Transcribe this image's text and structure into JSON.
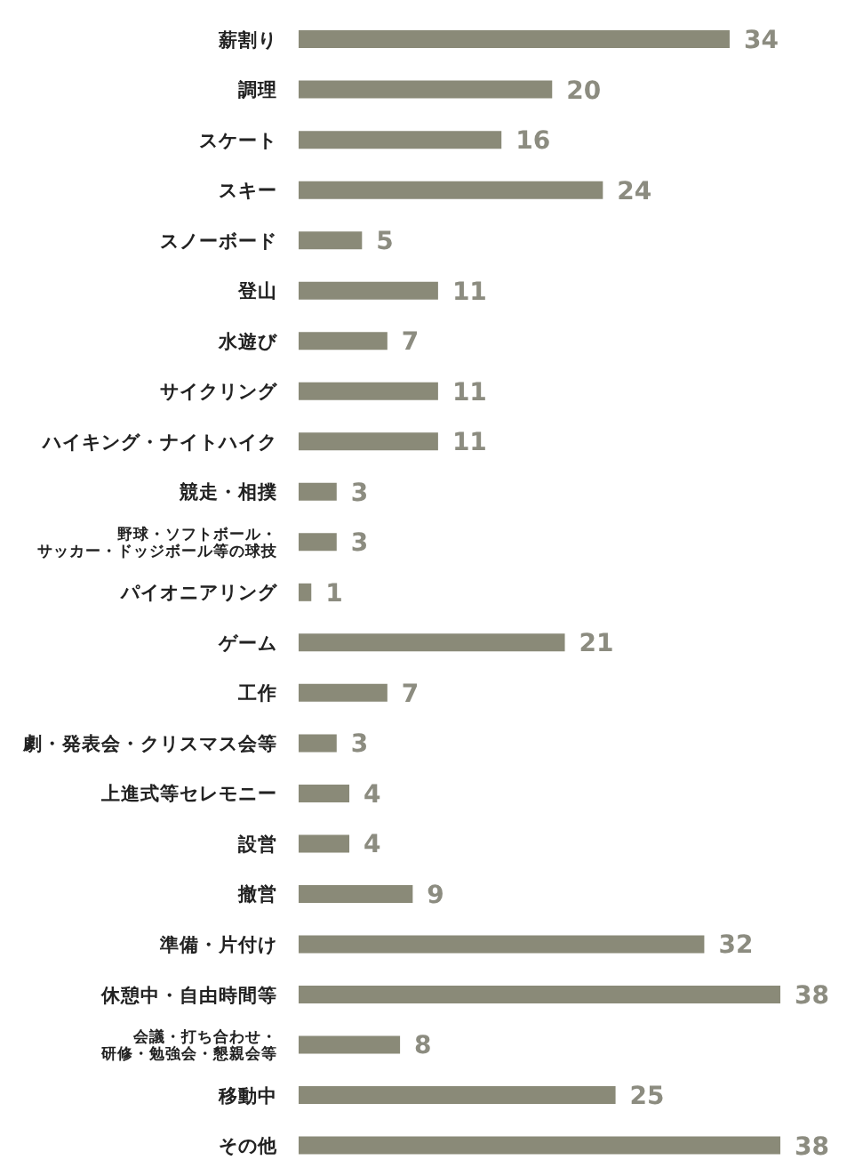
{
  "chart_data": {
    "type": "bar",
    "orientation": "horizontal",
    "data_labels": true,
    "color": "#8a8a78",
    "categories": [
      "薪割り",
      "調理",
      "スケート",
      "スキー",
      "スノーボード",
      "登山",
      "水遊び",
      "サイクリング",
      "ハイキング・ナイトハイク",
      "競走・相撲",
      "野球・ソフトボール・サッカー・ドッジボール等の球技",
      "パイオニアリング",
      "ゲーム",
      "工作",
      "劇・発表会・クリスマス会等",
      "上進式等セレモニー",
      "設営",
      "撤営",
      "準備・片付け",
      "休憩中・自由時間等",
      "会議・打ち合わせ・研修・勉強会・懇親会等",
      "移動中",
      "その他"
    ],
    "values": [
      34,
      20,
      16,
      24,
      5,
      11,
      7,
      11,
      11,
      3,
      3,
      1,
      21,
      7,
      3,
      4,
      4,
      9,
      32,
      38,
      8,
      25,
      38
    ]
  }
}
